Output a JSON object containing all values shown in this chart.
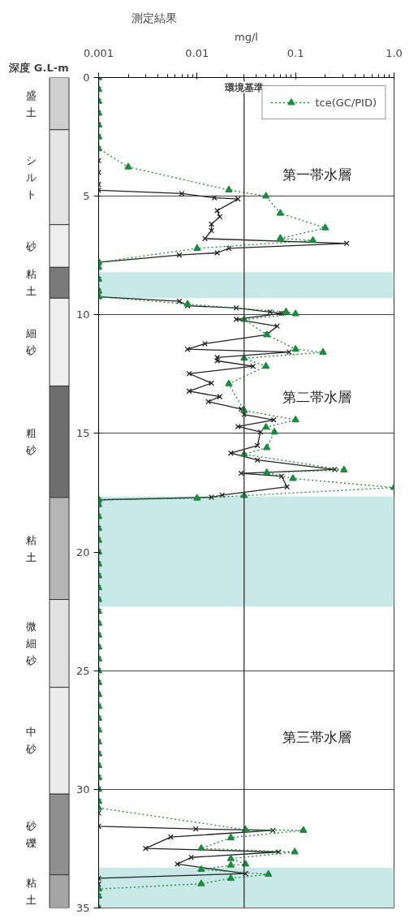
{
  "chart_data": [
    {
      "type": "bar",
      "stacked": true,
      "ylabel": "深度 G.L-m",
      "categories": [
        null
      ],
      "ylim": [
        35,
        0
      ],
      "tick_labels": false,
      "series": [
        {
          "name": "盛土",
          "color": "#cfcfcf",
          "values": [
            2.2
          ]
        },
        {
          "name": "シルト",
          "color": "#e4e4e4",
          "values": [
            4.0
          ]
        },
        {
          "name": "砂",
          "color": "#eeeeee",
          "values": [
            1.8
          ]
        },
        {
          "name": "粘土",
          "color": "#7a7a7a",
          "values": [
            1.3
          ]
        },
        {
          "name": "細砂",
          "color": "#eeeeee",
          "values": [
            3.7
          ]
        },
        {
          "name": "粗砂",
          "color": "#6e6e6e",
          "values": [
            4.7
          ]
        },
        {
          "name": "粘土",
          "color": "#b5b5b5",
          "values": [
            4.3
          ]
        },
        {
          "name": "微細砂",
          "color": "#e2e2e2",
          "values": [
            3.7
          ]
        },
        {
          "name": "中砂",
          "color": "#ececec",
          "values": [
            4.5
          ]
        },
        {
          "name": "砂礫",
          "color": "#8f8f8f",
          "values": [
            3.4
          ]
        },
        {
          "name": "粘土",
          "color": "#a5a5a5",
          "values": [
            1.4
          ]
        }
      ]
    },
    {
      "type": "line",
      "title": "測定結果",
      "xlabel": "mg/l",
      "log": "x",
      "xlim": [
        0.001,
        1
      ],
      "xticks": [
        0.001,
        0.01,
        0.1,
        {
          "value": 1,
          "label": "1.0"
        }
      ],
      "ylim": [
        35,
        0
      ],
      "yticks": [
        0,
        5,
        10,
        15,
        20,
        25,
        30,
        35
      ],
      "grid": "y",
      "legend": "top right",
      "series": [
        {
          "color": "#222222",
          "marker": "cross",
          "line_style": "solid",
          "x": [
            0.001,
            0.001,
            0.001,
            0.001,
            0.001,
            0.001,
            0.001,
            0.001,
            0.001,
            0.001,
            0.001,
            0.007,
            0.015,
            0.026,
            0.016,
            0.017,
            0.014,
            0.014,
            0.012,
            0.33,
            0.021,
            0.016,
            0.0066,
            0.001,
            0.001,
            0.001,
            0.001,
            0.001,
            0.0066,
            0.008,
            0.025,
            0.055,
            0.072,
            0.025,
            0.065,
            0.051,
            0.012,
            0.008,
            0.086,
            0.016,
            0.016,
            0.037,
            0.0083,
            0.014,
            0.0083,
            0.017,
            0.013,
            0.028,
            0.03,
            0.06,
            0.026,
            0.044,
            0.041,
            0.022,
            0.041,
            0.25,
            0.028,
            0.072,
            0.082,
            0.018,
            0.014,
            0.001,
            0.001,
            0.001,
            0.001,
            0.001,
            0.001,
            0.001,
            0.001,
            0.001,
            0.001,
            0.001,
            0.001,
            0.001,
            0.001,
            0.001,
            0.001,
            0.001,
            0.001,
            0.001,
            0.001,
            0.001,
            0.001,
            0.001,
            0.001,
            0.001,
            0.001,
            0.001,
            0.001,
            0.001,
            0.0097,
            0.059,
            0.0054,
            0.003,
            0.067,
            0.0087,
            0.0063,
            0.031,
            0.001,
            0.001,
            0.001,
            0.001
          ],
          "values": [
            0,
            0.5,
            1,
            1.5,
            2,
            2.5,
            3,
            3.5,
            4,
            4.5,
            4.75,
            4.89,
            5.07,
            5.12,
            5.61,
            5.87,
            6.18,
            6.45,
            6.79,
            6.99,
            7.2,
            7.39,
            7.48,
            7.79,
            8,
            8.5,
            9,
            9.24,
            9.43,
            9.62,
            9.71,
            9.88,
            9.94,
            10.19,
            10.48,
            10.84,
            11.22,
            11.45,
            11.57,
            11.8,
            11.94,
            12.17,
            12.48,
            12.88,
            13.22,
            13.45,
            13.66,
            13.97,
            14.2,
            14.43,
            14.71,
            14.94,
            15.51,
            15.83,
            16.12,
            16.52,
            16.68,
            16.8,
            17.25,
            17.6,
            17.69,
            17.8,
            18,
            18.5,
            19,
            19.5,
            20,
            20.5,
            21,
            21.5,
            22,
            22.5,
            23,
            23.5,
            24,
            24.5,
            25,
            25.5,
            26,
            26.5,
            27,
            27.5,
            28,
            28.5,
            29,
            29.5,
            30,
            30.5,
            31,
            31.56,
            31.67,
            31.73,
            32.01,
            32.49,
            32.64,
            32.87,
            33.15,
            33.55,
            33.75,
            34,
            34.5,
            35
          ]
        },
        {
          "name": "tce(GC/PID)",
          "color": "#1a8c3c",
          "marker": "triangle",
          "line_style": "dotted",
          "x": [
            0.001,
            0.001,
            0.001,
            0.001,
            0.001,
            0.001,
            0.001,
            0.002,
            0.021,
            0.05,
            0.07,
            0.2,
            0.07,
            0.15,
            0.01,
            0.001,
            0.001,
            0.001,
            0.001,
            0.001,
            0.008,
            0.08,
            0.1,
            0.03,
            0.051,
            0.1,
            0.19,
            0.03,
            0.05,
            0.021,
            0.03,
            0.1,
            0.05,
            0.061,
            0.051,
            0.03,
            0.31,
            0.051,
            0.094,
            1.0,
            0.03,
            0.01,
            0.001,
            0.001,
            0.001,
            0.001,
            0.001,
            0.001,
            0.001,
            0.001,
            0.001,
            0.001,
            0.001,
            0.001,
            0.001,
            0.001,
            0.001,
            0.001,
            0.001,
            0.001,
            0.001,
            0.001,
            0.001,
            0.001,
            0.001,
            0.001,
            0.001,
            0.001,
            0.001,
            0.001,
            0.031,
            0.12,
            0.022,
            0.011,
            0.098,
            0.022,
            0.031,
            0.022,
            0.011,
            0.053,
            0.022,
            0.011,
            0.001,
            0.001,
            0.001
          ],
          "values": [
            0,
            0.5,
            1,
            1.5,
            2,
            2.5,
            3,
            3.77,
            4.74,
            5.0,
            5.72,
            6.34,
            6.78,
            6.87,
            7.2,
            7.79,
            8,
            8.5,
            9,
            9.24,
            9.55,
            9.88,
            9.96,
            10.2,
            10.84,
            11.45,
            11.58,
            11.83,
            12.17,
            12.91,
            14.03,
            14.43,
            14.74,
            14.94,
            15.6,
            15.88,
            16.54,
            16.65,
            16.9,
            17.28,
            17.62,
            17.73,
            17.8,
            18,
            18.5,
            19,
            19.5,
            20,
            20.5,
            21,
            21.5,
            22,
            22.5,
            23,
            23.5,
            24,
            24.5,
            25,
            25.5,
            26,
            26.5,
            27,
            27.5,
            28,
            28.5,
            29,
            29.5,
            30,
            30.5,
            30.78,
            31.7,
            31.73,
            32.04,
            32.49,
            32.64,
            32.92,
            33.15,
            33.2,
            33.38,
            33.58,
            33.75,
            33.98,
            34.2,
            34.5,
            35
          ]
        }
      ],
      "ref_lines": [
        {
          "axis": "x",
          "value": 0.03,
          "label": "環境基準",
          "color": "#333333"
        }
      ],
      "bands": [
        {
          "axis": "y",
          "from": 8.2,
          "to": 9.3,
          "color": "#c9e9e9"
        },
        {
          "axis": "y",
          "from": 17.65,
          "to": 22.3,
          "color": "#c9e9e9"
        },
        {
          "axis": "y",
          "from": 33.3,
          "to": 35,
          "color": "#c9e9e9"
        }
      ],
      "annotations": [
        "第一帯水層",
        "第二帯水層",
        "第三帯水層"
      ]
    }
  ]
}
